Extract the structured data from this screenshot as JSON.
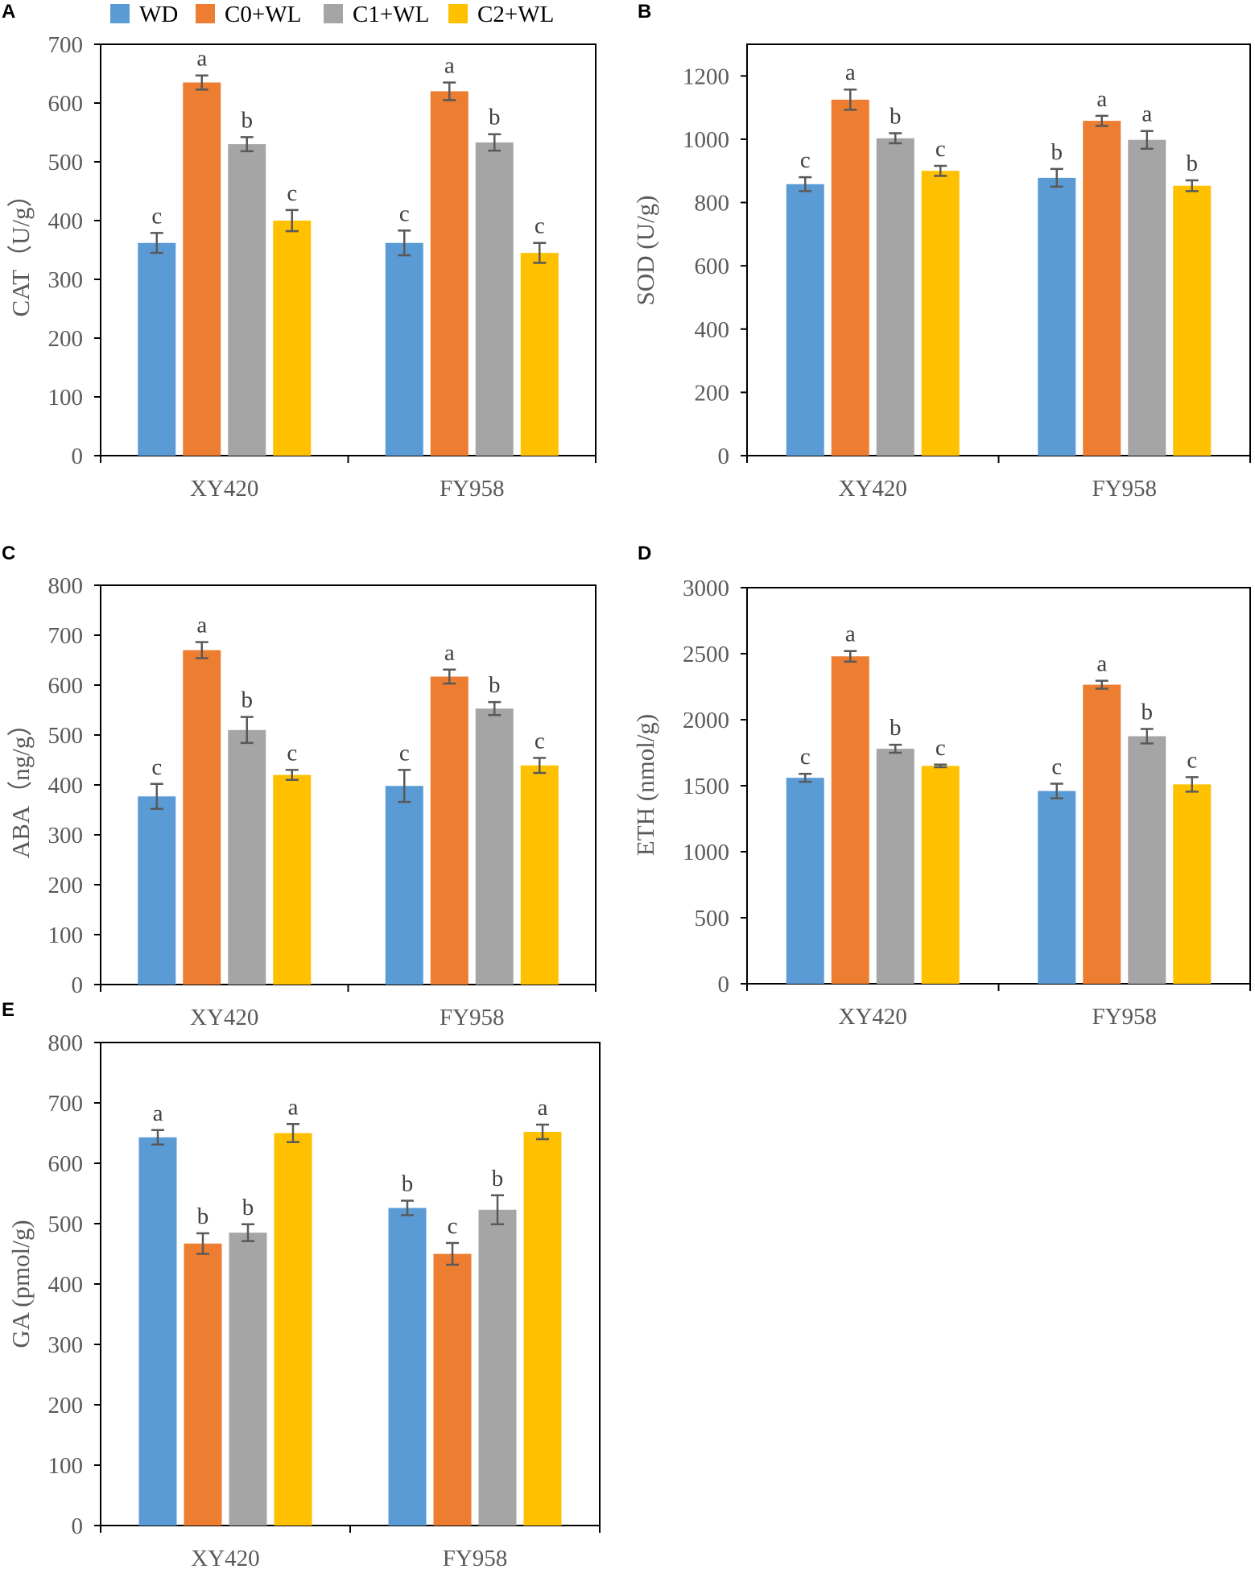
{
  "legend": [
    {
      "name": "WD",
      "color": "#5B9BD5"
    },
    {
      "name": "C0+WL",
      "color": "#ED7D31"
    },
    {
      "name": "C1+WL",
      "color": "#A5A5A5"
    },
    {
      "name": "C2+WL",
      "color": "#FFC000"
    }
  ],
  "chart_data": [
    {
      "panel": "A",
      "type": "bar",
      "title": "",
      "ylabel": "CAT（U/g）",
      "xlabel": "",
      "ylim": [
        0,
        700
      ],
      "yticks": [
        0,
        100,
        200,
        300,
        400,
        500,
        600,
        700
      ],
      "categories": [
        "XY420",
        "FY958"
      ],
      "series": [
        {
          "name": "WD",
          "values": [
            362,
            362
          ],
          "errors": [
            17,
            21
          ],
          "letters": [
            "c",
            "c"
          ]
        },
        {
          "name": "C0+WL",
          "values": [
            635,
            620
          ],
          "errors": [
            12,
            15
          ],
          "letters": [
            "a",
            "a"
          ]
        },
        {
          "name": "C1+WL",
          "values": [
            530,
            533
          ],
          "errors": [
            12,
            14
          ],
          "letters": [
            "b",
            "b"
          ]
        },
        {
          "name": "C2+WL",
          "values": [
            400,
            345
          ],
          "errors": [
            18,
            17
          ],
          "letters": [
            "c",
            "c"
          ]
        }
      ]
    },
    {
      "panel": "B",
      "type": "bar",
      "title": "",
      "ylabel": "SOD (U/g)",
      "xlabel": "",
      "ylim": [
        0,
        1300
      ],
      "yticks": [
        0,
        200,
        400,
        600,
        800,
        1000,
        1200
      ],
      "categories": [
        "XY420",
        "FY958"
      ],
      "series": [
        {
          "name": "WD",
          "values": [
            858,
            878
          ],
          "errors": [
            22,
            28
          ],
          "letters": [
            "c",
            "b"
          ]
        },
        {
          "name": "C0+WL",
          "values": [
            1125,
            1058
          ],
          "errors": [
            32,
            16
          ],
          "letters": [
            "a",
            "a"
          ]
        },
        {
          "name": "C1+WL",
          "values": [
            1003,
            998
          ],
          "errors": [
            16,
            28
          ],
          "letters": [
            "b",
            "a"
          ]
        },
        {
          "name": "C2+WL",
          "values": [
            900,
            853
          ],
          "errors": [
            16,
            17
          ],
          "letters": [
            "c",
            "b"
          ]
        }
      ]
    },
    {
      "panel": "C",
      "type": "bar",
      "title": "",
      "ylabel": "ABA（ng/g）",
      "xlabel": "",
      "ylim": [
        0,
        800
      ],
      "yticks": [
        0,
        100,
        200,
        300,
        400,
        500,
        600,
        700,
        800
      ],
      "categories": [
        "XY420",
        "FY958"
      ],
      "series": [
        {
          "name": "WD",
          "values": [
            377,
            398
          ],
          "errors": [
            25,
            32
          ],
          "letters": [
            "c",
            "c"
          ]
        },
        {
          "name": "C0+WL",
          "values": [
            670,
            617
          ],
          "errors": [
            16,
            14
          ],
          "letters": [
            "a",
            "a"
          ]
        },
        {
          "name": "C1+WL",
          "values": [
            510,
            553
          ],
          "errors": [
            26,
            13
          ],
          "letters": [
            "b",
            "b"
          ]
        },
        {
          "name": "C2+WL",
          "values": [
            420,
            439
          ],
          "errors": [
            10,
            15
          ],
          "letters": [
            "c",
            "c"
          ]
        }
      ]
    },
    {
      "panel": "D",
      "type": "bar",
      "title": "",
      "ylabel": "ETH (nmol/g)",
      "xlabel": "",
      "ylim": [
        0,
        3000
      ],
      "yticks": [
        0,
        500,
        1000,
        1500,
        2000,
        2500,
        3000
      ],
      "categories": [
        "XY420",
        "FY958"
      ],
      "series": [
        {
          "name": "WD",
          "values": [
            1560,
            1460
          ],
          "errors": [
            30,
            55
          ],
          "letters": [
            "c",
            "c"
          ]
        },
        {
          "name": "C0+WL",
          "values": [
            2480,
            2265
          ],
          "errors": [
            40,
            30
          ],
          "letters": [
            "a",
            "a"
          ]
        },
        {
          "name": "C1+WL",
          "values": [
            1780,
            1875
          ],
          "errors": [
            30,
            55
          ],
          "letters": [
            "b",
            "b"
          ]
        },
        {
          "name": "C2+WL",
          "values": [
            1650,
            1510
          ],
          "errors": [
            10,
            55
          ],
          "letters": [
            "c",
            "c"
          ]
        }
      ]
    },
    {
      "panel": "E",
      "type": "bar",
      "title": "",
      "ylabel": "GA (pmol/g)",
      "xlabel": "",
      "ylim": [
        0,
        800
      ],
      "yticks": [
        0,
        100,
        200,
        300,
        400,
        500,
        600,
        700,
        800
      ],
      "categories": [
        "XY420",
        "FY958"
      ],
      "series": [
        {
          "name": "WD",
          "values": [
            643,
            526
          ],
          "errors": [
            12,
            12
          ],
          "letters": [
            "a",
            "b"
          ]
        },
        {
          "name": "C0+WL",
          "values": [
            467,
            450
          ],
          "errors": [
            17,
            18
          ],
          "letters": [
            "b",
            "c"
          ]
        },
        {
          "name": "C1+WL",
          "values": [
            485,
            523
          ],
          "errors": [
            14,
            24
          ],
          "letters": [
            "b",
            "b"
          ]
        },
        {
          "name": "C2+WL",
          "values": [
            650,
            652
          ],
          "errors": [
            15,
            12
          ],
          "letters": [
            "a",
            "a"
          ]
        }
      ]
    }
  ]
}
